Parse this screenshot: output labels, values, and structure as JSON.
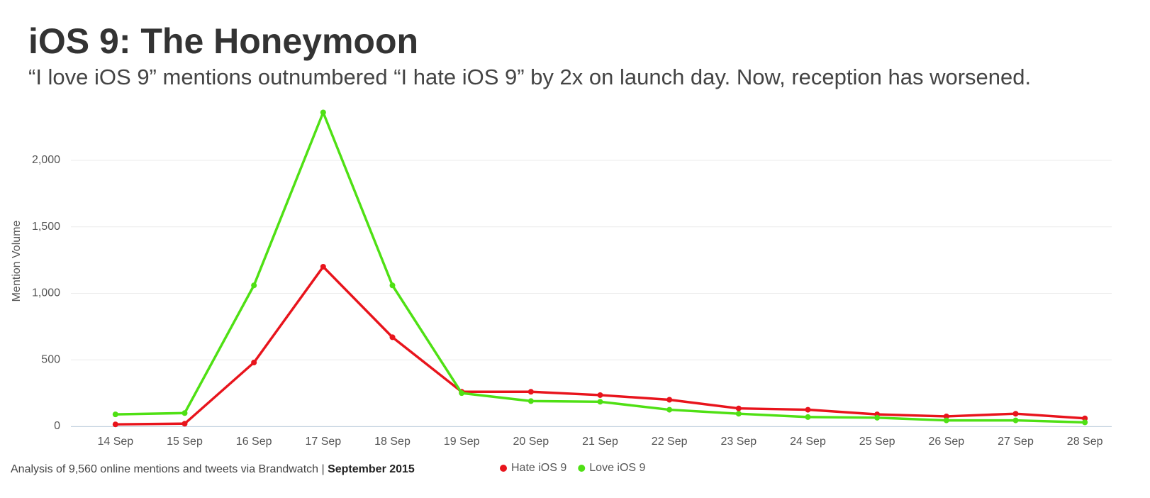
{
  "chart_data": {
    "type": "line",
    "title": "iOS 9: The Honeymoon",
    "subtitle": "“I love iOS 9” mentions outnumbered “I hate iOS 9” by 2x on launch day. Now, reception has worsened.",
    "y_label": "Mention Volume",
    "categories": [
      "14 Sep",
      "15 Sep",
      "16 Sep",
      "17 Sep",
      "18 Sep",
      "19 Sep",
      "20 Sep",
      "21 Sep",
      "22 Sep",
      "23 Sep",
      "24 Sep",
      "25 Sep",
      "26 Sep",
      "27 Sep",
      "28 Sep"
    ],
    "series": [
      {
        "name": "Hate iOS 9",
        "color": "#e8141c",
        "values": [
          15,
          20,
          480,
          1200,
          670,
          260,
          260,
          235,
          200,
          135,
          125,
          90,
          75,
          95,
          60
        ]
      },
      {
        "name": "Love iOS 9",
        "color": "#4fe014",
        "values": [
          90,
          100,
          1060,
          2360,
          1060,
          250,
          190,
          185,
          125,
          95,
          70,
          65,
          45,
          45,
          30
        ]
      }
    ],
    "ylim": [
      0,
      2400
    ],
    "yticks": [
      0,
      500,
      {
        "value": 1000,
        "label": "1,000"
      },
      {
        "value": 1500,
        "label": "1,500"
      },
      {
        "value": 2000,
        "label": "2,000"
      }
    ],
    "grid": true,
    "source": "Analysis of 9,560 online mentions and tweets via Brandwatch |",
    "source_date": "September 2015"
  }
}
